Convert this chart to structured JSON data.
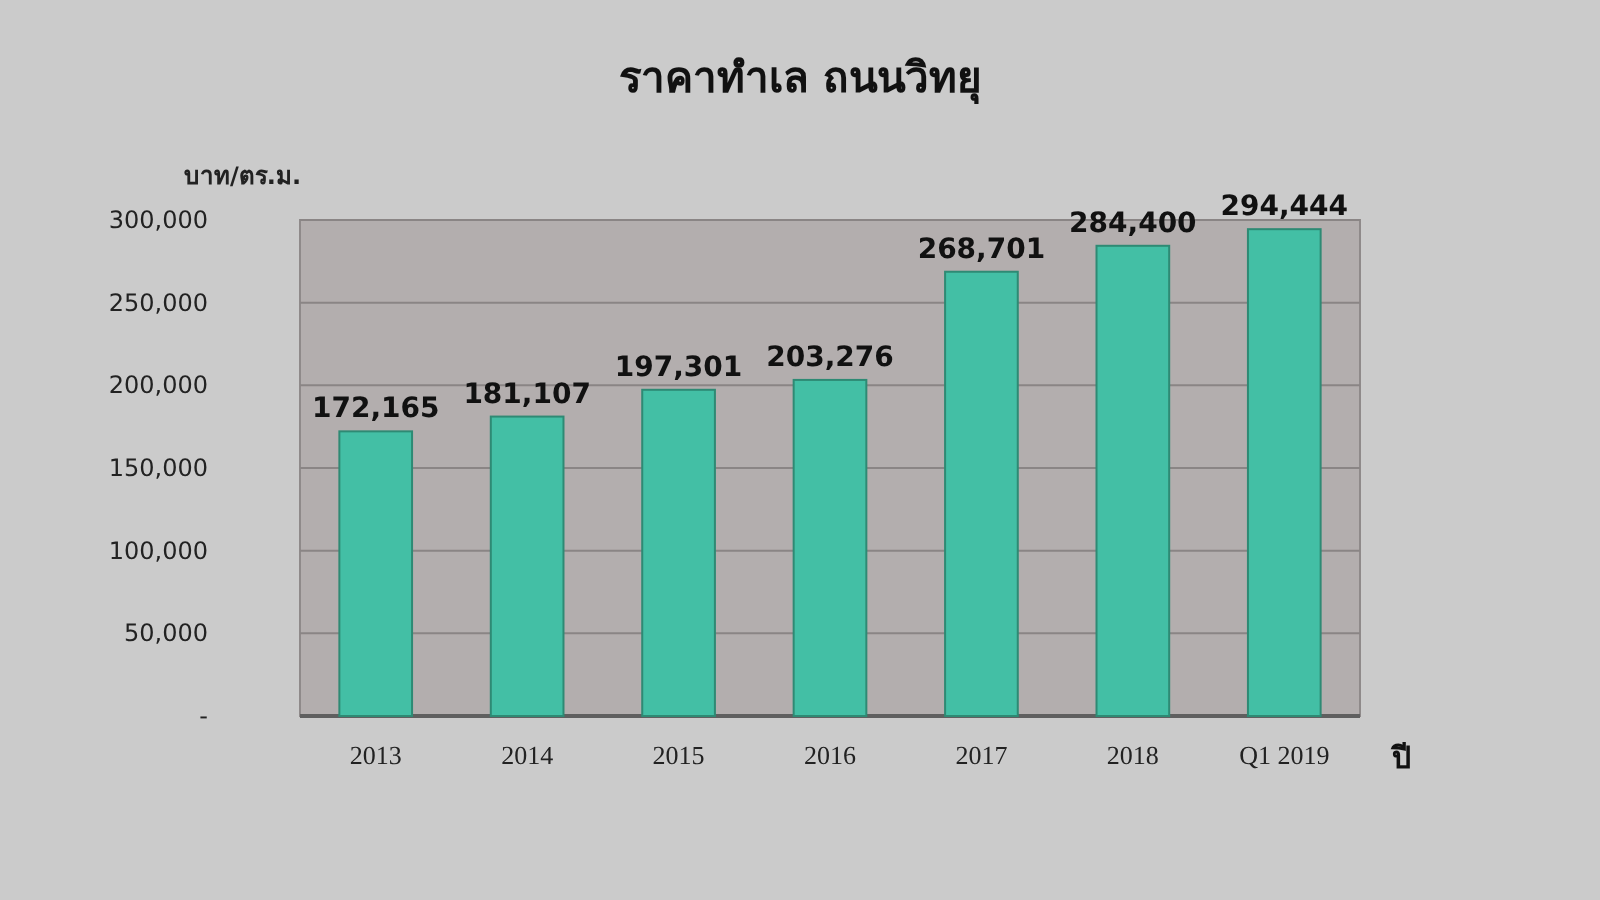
{
  "chart_data": {
    "type": "bar",
    "title": "ราคาทำเล ถนนวิทยุ",
    "ylabel": "บาท/ตร.ม.",
    "xlabel": "ปี",
    "categories": [
      "2013",
      "2014",
      "2015",
      "2016",
      "2017",
      "2018",
      "Q1 2019"
    ],
    "values": [
      172165,
      181107,
      197301,
      203276,
      268701,
      284400,
      294444
    ],
    "value_labels": [
      "172,165",
      "181,107",
      "197,301",
      "203,276",
      "268,701",
      "284,400",
      "294,444"
    ],
    "color": "#43bfa5",
    "ylim": [
      0,
      300000
    ],
    "yticks": [
      {
        "value": 0,
        "label": "-"
      },
      {
        "value": 50000,
        "label": "50,000"
      },
      {
        "value": 100000,
        "label": "100,000"
      },
      {
        "value": 150000,
        "label": "150,000"
      },
      {
        "value": 200000,
        "label": "200,000"
      },
      {
        "value": 250000,
        "label": "250,000"
      },
      {
        "value": 300000,
        "label": "300,000"
      }
    ],
    "grid": "y"
  }
}
